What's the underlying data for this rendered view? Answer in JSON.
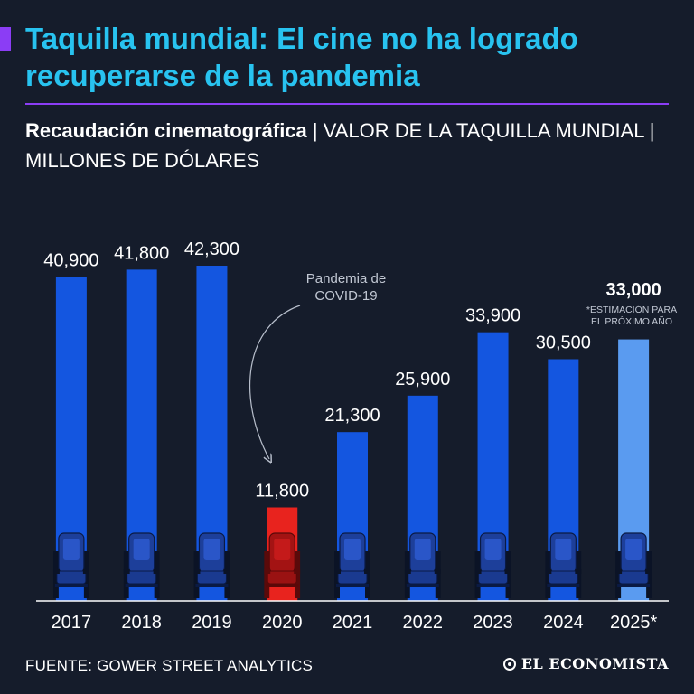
{
  "title": "Taquilla mundial: El cine no ha logrado recuperarse de la pandemia",
  "subtitle_bold": "Recaudación cinematográfica",
  "subtitle_rest": " | VALOR DE LA TAQUILLA MUNDIAL | MILLONES DE DÓLARES",
  "source": "FUENTE: GOWER STREET ANALYTICS",
  "brand": "EL ECONOMISTA",
  "colors": {
    "background": "#151c2b",
    "title": "#28c3f0",
    "accent": "#8b3df5",
    "bar": "#1456e0",
    "bar_pandemic": "#e8231e",
    "bar_estimate": "#5a9bf0"
  },
  "chart_data": {
    "type": "bar",
    "title": "Recaudación cinematográfica",
    "ylabel": "Millones de dólares",
    "xlabel": "",
    "categories": [
      "2017",
      "2018",
      "2019",
      "2020",
      "2021",
      "2022",
      "2023",
      "2024",
      "2025*"
    ],
    "values": [
      40900,
      41800,
      42300,
      11800,
      21300,
      25900,
      33900,
      30500,
      33000
    ],
    "value_labels": [
      "40,900",
      "41,800",
      "42,300",
      "11,800",
      "21,300",
      "25,900",
      "33,900",
      "30,500",
      "33,000"
    ],
    "highlight": {
      "2020": "pandemic",
      "2025*": "estimate"
    },
    "ylim": [
      0,
      43000
    ],
    "annotations": [
      {
        "target": "2020",
        "lines": [
          "Pandemia de",
          "COVID-19"
        ]
      },
      {
        "target": "2025*",
        "lines": [
          "*ESTIMACIÓN PARA",
          "EL PRÓXIMO AÑO"
        ]
      }
    ],
    "grid": false
  }
}
